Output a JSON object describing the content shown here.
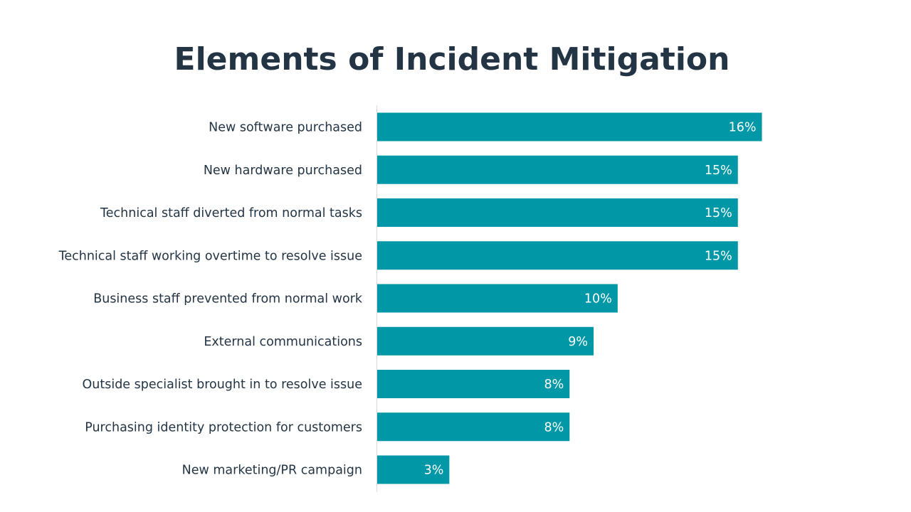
{
  "chart_data": {
    "type": "bar",
    "orientation": "horizontal",
    "title": "Elements of Incident Mitigation",
    "categories": [
      "New software purchased",
      "New hardware purchased",
      "Technical staff diverted from normal tasks",
      "Technical staff working overtime to resolve issue",
      "Business staff prevented from normal work",
      "External communications",
      "Outside specialist brought in to resolve issue",
      "Purchasing identity protection for customers",
      "New marketing/PR campaign"
    ],
    "values": [
      16,
      15,
      15,
      15,
      10,
      9,
      8,
      8,
      3
    ],
    "value_labels": [
      "16%",
      "15%",
      "15%",
      "15%",
      "10%",
      "9%",
      "8%",
      "8%",
      "3%"
    ],
    "unit": "%",
    "xlim": [
      0,
      18.5
    ],
    "grid": false,
    "legend": "none",
    "bar_color": "#0097A7",
    "title_color": "#233544"
  }
}
